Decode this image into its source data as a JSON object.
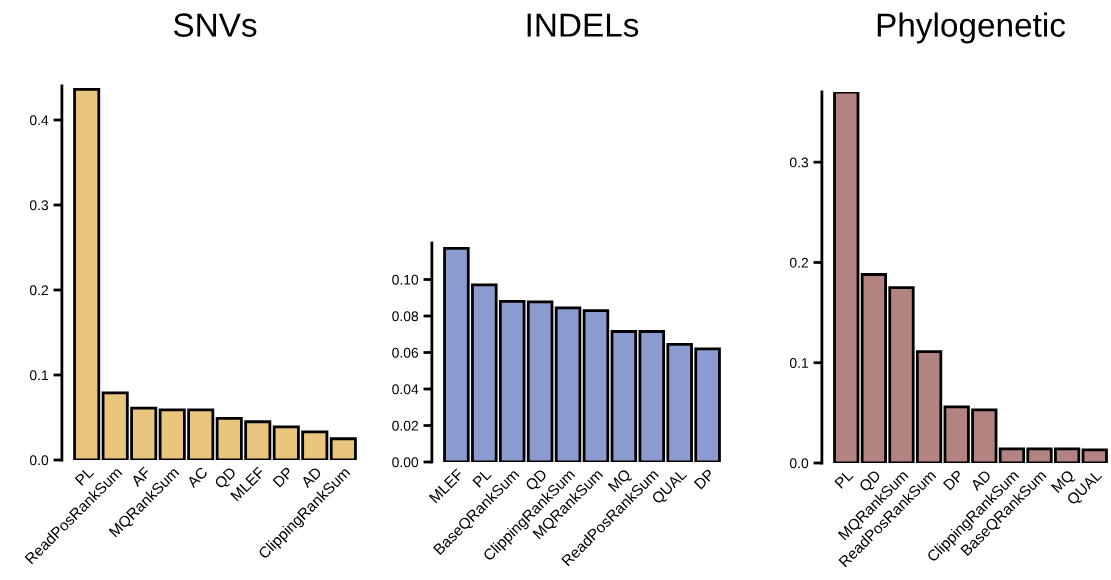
{
  "chart_data": [
    {
      "type": "bar",
      "title": "SNVs",
      "categories": [
        "PL",
        "ReadPosRankSum",
        "AF",
        "MQRankSum",
        "AC",
        "QD",
        "MLEF",
        "DP",
        "AD",
        "ClippingRankSum"
      ],
      "values": [
        0.436,
        0.079,
        0.061,
        0.059,
        0.059,
        0.049,
        0.045,
        0.039,
        0.033,
        0.025
      ],
      "color": "#e9c57e",
      "ylim": [
        0,
        0.44
      ],
      "yticks": [
        {
          "value": 0,
          "label": "0.0"
        },
        0.1,
        0.2,
        0.3,
        0.4
      ],
      "grid": false
    },
    {
      "type": "bar",
      "title": "INDELs",
      "categories": [
        "MLEF",
        "PL",
        "BaseQRankSum",
        "QD",
        "ClippingRankSum",
        "MQRankSum",
        "MQ",
        "ReadPosRankSum",
        "QUAL",
        "DP"
      ],
      "values": [
        0.117,
        0.097,
        0.088,
        0.0877,
        0.0844,
        0.083,
        0.0715,
        0.0715,
        0.0645,
        0.062
      ],
      "color": "#8b9bcf",
      "ylim": [
        0,
        0.12
      ],
      "yticks": [
        {
          "value": 0,
          "label": "0.00"
        },
        {
          "value": 0.02,
          "label": "0.02"
        },
        {
          "value": 0.04,
          "label": "0.04"
        },
        {
          "value": 0.06,
          "label": "0.06"
        },
        {
          "value": 0.08,
          "label": "0.08"
        },
        {
          "value": 0.1,
          "label": "0.10"
        }
      ],
      "grid": false
    },
    {
      "type": "bar",
      "title": "Phylogenetic",
      "categories": [
        "PL",
        "QD",
        "MQRankSum",
        "ReadPosRankSum",
        "DP",
        "AD",
        "ClippingRankSum",
        "BaseQRankSum",
        "MQ",
        "QUAL"
      ],
      "values": [
        0.37,
        0.188,
        0.175,
        0.111,
        0.056,
        0.053,
        0.014,
        0.014,
        0.014,
        0.013
      ],
      "color": "#b38381",
      "ylim": [
        0,
        0.37
      ],
      "yticks": [
        {
          "value": 0,
          "label": "0.0"
        },
        0.1,
        0.2,
        0.3
      ],
      "grid": false
    }
  ]
}
